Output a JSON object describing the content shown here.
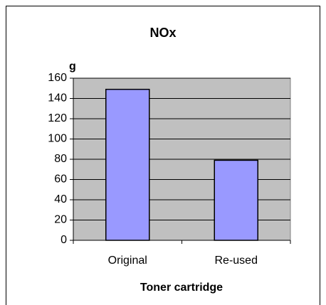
{
  "chart_data": {
    "type": "bar",
    "title": "NOx",
    "y_label": "g",
    "x_label": "Toner cartridge",
    "categories": [
      "Original",
      "Re-used"
    ],
    "values": [
      149,
      79
    ],
    "color": "#9999ff",
    "ylim": [
      0,
      160
    ],
    "yticks": [
      0,
      20,
      40,
      60,
      80,
      100,
      120,
      140,
      160
    ],
    "grid": true
  }
}
